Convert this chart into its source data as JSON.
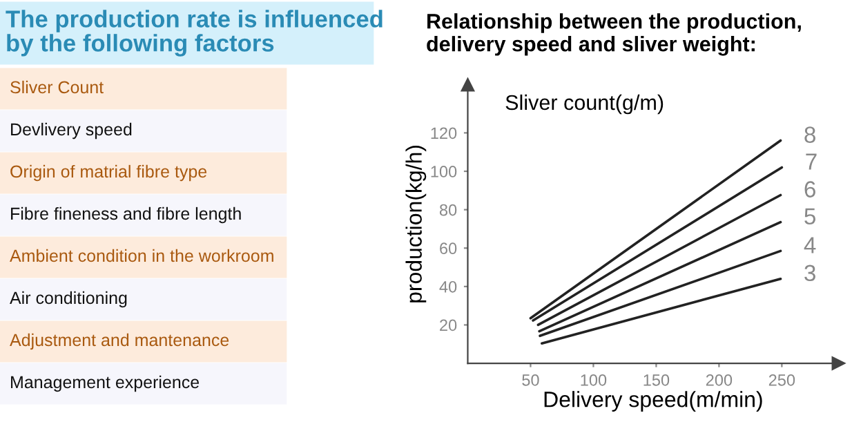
{
  "chart_data": [
    {
      "type": "other",
      "title": "The production rate is influenced\nby the following factors",
      "annotations": [
        "Sliver Count",
        "Devlivery speed",
        "Origin of matrial fibre type",
        "Fibre fineness and fibre length",
        "Ambient condition in the workroom",
        "Air conditioning",
        "Adjustment and mantenance",
        "Management experience"
      ]
    },
    {
      "type": "line",
      "title": "Relationship between the production,\ndelivery speed and sliver weight:",
      "xlabel": "Delivery speed(m/min)",
      "ylabel": "production(kg/h)",
      "legend_title": "Sliver count(g/m)",
      "xlim": [
        0,
        295
      ],
      "ylim": [
        0,
        145
      ],
      "xticks": [
        50,
        100,
        150,
        200,
        250
      ],
      "yticks": [
        20,
        40,
        60,
        80,
        100,
        120
      ],
      "grid": false,
      "marker": "none",
      "line_style": "solid",
      "series": [
        {
          "name": "8",
          "color": "#222222",
          "x": [
            50,
            249
          ],
          "values": [
            23.5,
            116
          ]
        },
        {
          "name": "7",
          "color": "#222222",
          "x": [
            52,
            250
          ],
          "values": [
            22.3,
            102
          ]
        },
        {
          "name": "6",
          "color": "#222222",
          "x": [
            56,
            249
          ],
          "values": [
            20,
            87.6
          ]
        },
        {
          "name": "5",
          "color": "#222222",
          "x": [
            57,
            249
          ],
          "values": [
            16.7,
            73.5
          ]
        },
        {
          "name": "4",
          "color": "#222222",
          "x": [
            57.5,
            249
          ],
          "values": [
            14.3,
            58.5
          ]
        },
        {
          "name": "3",
          "color": "#222222",
          "x": [
            59,
            249
          ],
          "values": [
            10.4,
            44
          ]
        }
      ]
    }
  ]
}
